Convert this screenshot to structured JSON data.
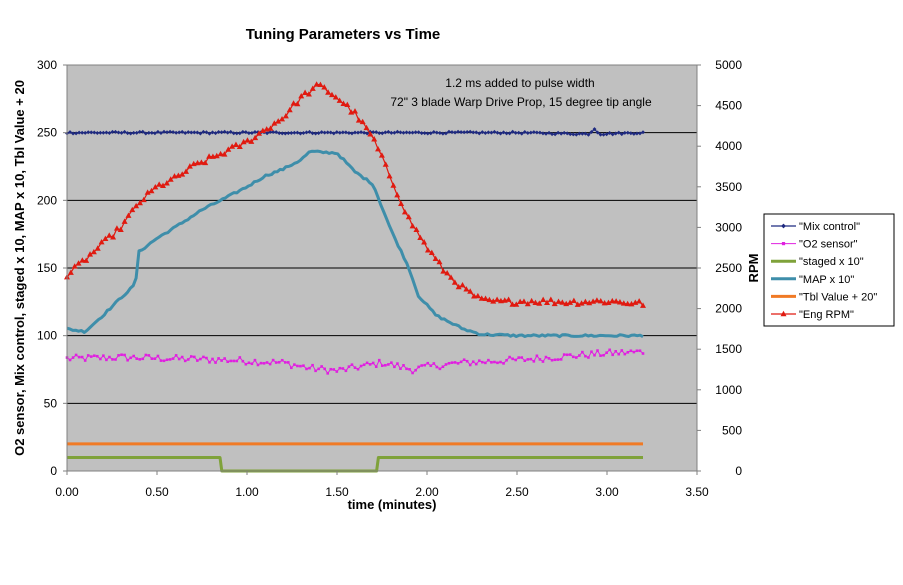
{
  "chart_data": {
    "type": "line",
    "title": "Tuning Parameters vs Time",
    "xlabel": "time (minutes)",
    "ylabel": "O2 sensor, Mix control, staged x 10, MAP x 10, Tbl Value + 20",
    "y2label": "RPM",
    "xlim": [
      0,
      3.5
    ],
    "ylim": [
      0,
      300
    ],
    "y2lim": [
      0,
      5000
    ],
    "x_ticks": [
      "0.00",
      "0.50",
      "1.00",
      "1.50",
      "2.00",
      "2.50",
      "3.00",
      "3.50"
    ],
    "y_ticks": [
      "0",
      "50",
      "100",
      "150",
      "200",
      "250",
      "300"
    ],
    "y2_ticks": [
      "0",
      "500",
      "1000",
      "1500",
      "2000",
      "2500",
      "3000",
      "3500",
      "4000",
      "4500",
      "5000"
    ],
    "annotations": [
      "1.2 ms added to pulse width",
      "72\" 3 blade  Warp Drive Prop, 15 degree tip angle"
    ],
    "legend_position": "right",
    "series": [
      {
        "name": "\"Mix control\"",
        "color": "#1f2a80",
        "marker": "diamond",
        "axis": "left",
        "x": [
          0,
          0.5,
          1.0,
          1.5,
          2.0,
          2.5,
          2.9,
          2.93,
          2.96,
          3.2
        ],
        "y": [
          250,
          250,
          250,
          250,
          250,
          250,
          249,
          253,
          249,
          250
        ]
      },
      {
        "name": "\"O2 sensor\"",
        "color": "#e020e0",
        "marker": "square",
        "axis": "left",
        "x": [
          0,
          0.3,
          0.6,
          0.9,
          1.2,
          1.35,
          1.5,
          1.75,
          1.92,
          2.0,
          2.2,
          2.5,
          2.8,
          3.0,
          3.2
        ],
        "y": [
          83,
          84,
          83,
          82,
          80,
          76,
          74,
          80,
          75,
          77,
          80,
          82,
          85,
          87,
          88
        ]
      },
      {
        "name": "\"staged x 10\"",
        "color": "#7fa23a",
        "marker": "none",
        "axis": "left",
        "x": [
          0,
          0.85,
          0.86,
          1.72,
          1.73,
          3.2
        ],
        "y": [
          10,
          10,
          0,
          0,
          10,
          10
        ]
      },
      {
        "name": "\"MAP x 10\"",
        "color": "#3e8eaa",
        "marker": "none",
        "axis": "left",
        "x": [
          0,
          0.1,
          0.2,
          0.3,
          0.38,
          0.4,
          0.5,
          0.6,
          0.75,
          0.9,
          1.0,
          1.1,
          1.2,
          1.3,
          1.35,
          1.5,
          1.6,
          1.7,
          1.8,
          1.9,
          1.95,
          2.05,
          2.2,
          2.3,
          2.5,
          3.2
        ],
        "y": [
          105,
          103,
          115,
          128,
          138,
          162,
          172,
          180,
          193,
          203,
          210,
          218,
          223,
          230,
          236,
          235,
          221,
          212,
          178,
          150,
          130,
          115,
          105,
          101,
          100,
          100
        ]
      },
      {
        "name": "\"Tbl Value + 20\"",
        "color": "#f07a25",
        "marker": "none",
        "axis": "left",
        "x": [
          0,
          3.2
        ],
        "y": [
          20,
          20
        ]
      },
      {
        "name": "\"Eng RPM\"",
        "color": "#e01a10",
        "marker": "triangle",
        "axis": "right",
        "x": [
          0,
          0.1,
          0.2,
          0.3,
          0.4,
          0.5,
          0.6,
          0.7,
          0.8,
          0.9,
          1.0,
          1.1,
          1.2,
          1.3,
          1.4,
          1.5,
          1.6,
          1.7,
          1.8,
          1.9,
          2.0,
          2.1,
          2.2,
          2.3,
          2.4,
          2.6,
          2.8,
          3.0,
          3.2
        ],
        "y": [
          2400,
          2600,
          2800,
          3000,
          3300,
          3500,
          3600,
          3750,
          3850,
          3950,
          4050,
          4200,
          4350,
          4600,
          4750,
          4600,
          4400,
          4100,
          3600,
          3100,
          2750,
          2450,
          2250,
          2100,
          2080,
          2090,
          2080,
          2090,
          2060
        ]
      }
    ]
  }
}
